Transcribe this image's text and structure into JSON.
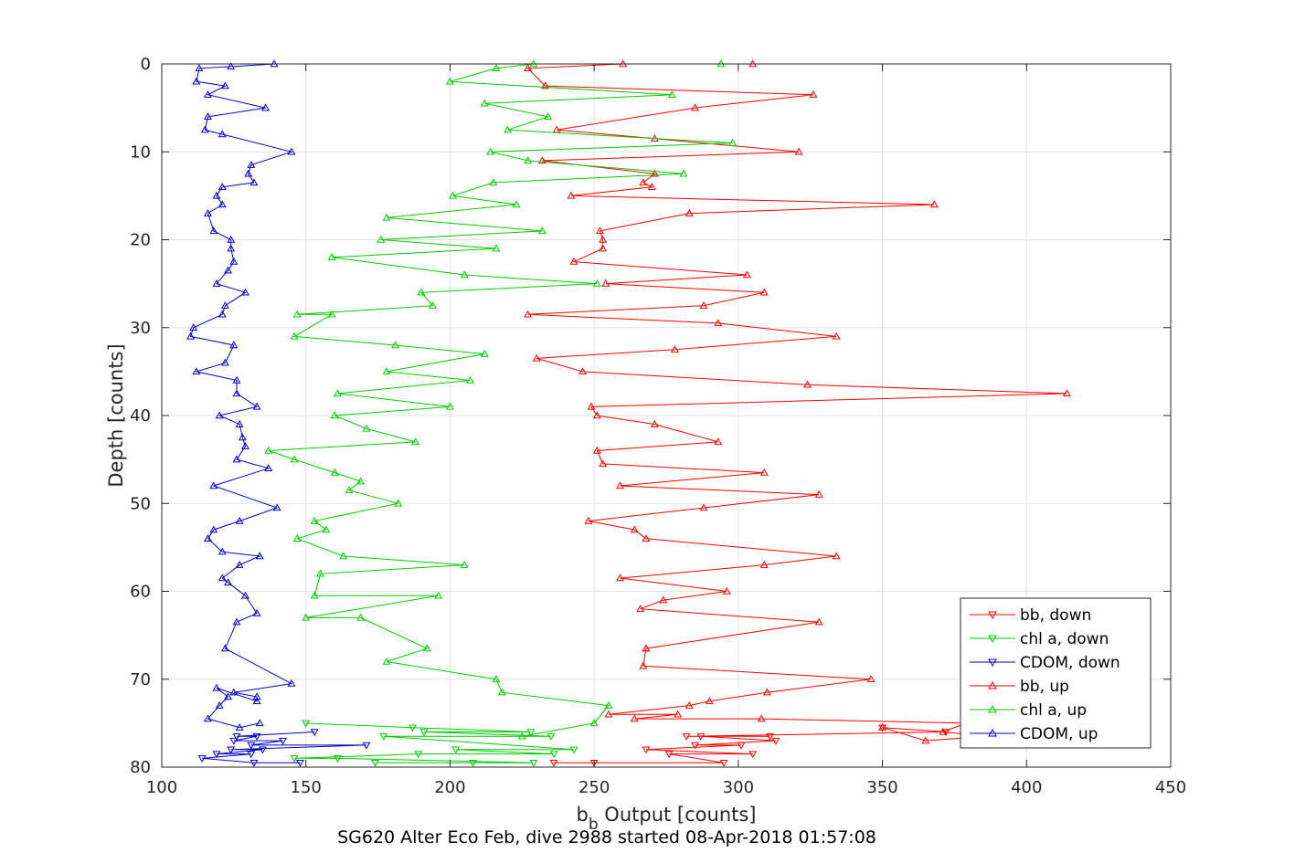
{
  "chart_data": {
    "type": "line",
    "title": "",
    "caption": "SG620 Alter Eco Feb, dive 2988 started 08-Apr-2018 01:57:08",
    "xlabel_main": "b",
    "xlabel_sub": "b",
    "xlabel_rest": " Output [counts]",
    "ylabel": "Depth [counts]",
    "xlim": [
      100,
      450
    ],
    "ylim": [
      0,
      80
    ],
    "y_reversed": true,
    "grid": true,
    "legend_position": "bottom-right",
    "xticks": [
      {
        "value": 100,
        "label": "100"
      },
      {
        "value": 150,
        "label": "150"
      },
      {
        "value": 200,
        "label": "200"
      },
      {
        "value": 250,
        "label": "250"
      },
      {
        "value": 300,
        "label": "300"
      },
      {
        "value": 350,
        "label": "350"
      },
      {
        "value": 400,
        "label": "400"
      },
      {
        "value": 450,
        "label": "450"
      }
    ],
    "yticks": [
      {
        "value": 0,
        "label": "0"
      },
      {
        "value": 10,
        "label": "10"
      },
      {
        "value": 20,
        "label": "20"
      },
      {
        "value": 30,
        "label": "30"
      },
      {
        "value": 40,
        "label": "40"
      },
      {
        "value": 50,
        "label": "50"
      },
      {
        "value": 60,
        "label": "60"
      },
      {
        "value": 70,
        "label": "70"
      },
      {
        "value": 80,
        "label": "80"
      }
    ],
    "series": [
      {
        "name": "bb, down",
        "color": "#ff0000",
        "marker": "triangle-down",
        "x": [
          236,
          250,
          295,
          276,
          305,
          268,
          301,
          285,
          313,
          287,
          311,
          282,
          372,
          350
        ],
        "y": [
          79.5,
          79.5,
          79.5,
          78.5,
          78.5,
          78,
          77.5,
          77.5,
          77,
          76.5,
          76.5,
          76.5,
          76,
          75.5
        ]
      },
      {
        "name": "chl a, down",
        "color": "#00cc00",
        "marker": "triangle-down",
        "x": [
          174,
          208,
          229,
          161,
          146,
          189,
          236,
          202,
          243,
          177,
          235,
          191,
          228,
          187,
          150
        ],
        "y": [
          79.5,
          79.5,
          79.5,
          79,
          79,
          78.5,
          78.5,
          78,
          78,
          76.5,
          76.5,
          76,
          76,
          75.5,
          75
        ]
      },
      {
        "name": "CDOM, down",
        "color": "#0000cc",
        "marker": "triangle-down",
        "x": [
          148,
          132,
          114,
          131,
          119,
          135,
          124,
          171,
          131,
          142,
          125,
          133,
          126,
          153
        ],
        "y": [
          79.5,
          79.5,
          79,
          78.5,
          78.5,
          78,
          78,
          77.5,
          77.5,
          77,
          77,
          76.5,
          76.5,
          76
        ]
      },
      {
        "name": "bb, up",
        "color": "#ff0000",
        "marker": "triangle-up",
        "x": [
          350,
          365,
          386,
          371,
          379,
          308,
          264,
          279,
          255,
          283,
          290,
          310,
          346,
          267,
          268,
          268,
          328,
          266,
          274,
          296,
          259,
          309,
          334,
          268,
          264,
          248,
          288,
          328,
          259,
          309,
          253,
          251,
          293,
          271,
          251,
          249,
          414,
          324,
          246,
          230,
          278,
          334,
          293,
          227,
          288,
          309,
          254,
          303,
          243,
          253,
          253,
          252,
          283,
          368,
          242,
          270,
          267,
          271,
          232,
          321,
          271,
          237,
          285,
          326,
          233,
          227,
          260,
          305
        ],
        "y": [
          75.5,
          77,
          76.5,
          76,
          75,
          74.5,
          74.5,
          74,
          74,
          73,
          72.5,
          71.5,
          70,
          68.5,
          66.5,
          66.5,
          63.5,
          62,
          61,
          60,
          58.5,
          57,
          56,
          54,
          53,
          52,
          50.5,
          49,
          48,
          46.5,
          45.5,
          44,
          43,
          41,
          40,
          39,
          37.5,
          36.5,
          35,
          33.5,
          32.5,
          31,
          29.5,
          28.5,
          27.5,
          26,
          25,
          24,
          22.5,
          21,
          20,
          19,
          17,
          16,
          15,
          14,
          13.5,
          12.5,
          11,
          10,
          8.5,
          7.5,
          5,
          3.5,
          2.5,
          0.5,
          0,
          0
        ]
      },
      {
        "name": "chl a, up",
        "color": "#00cc00",
        "marker": "triangle-up",
        "x": [
          225,
          250,
          255,
          218,
          216,
          178,
          192,
          169,
          150,
          196,
          153,
          155,
          205,
          163,
          147,
          157,
          153,
          182,
          165,
          169,
          160,
          146,
          137,
          188,
          171,
          160,
          200,
          161,
          207,
          178,
          212,
          181,
          146,
          159,
          147,
          194,
          190,
          251,
          205,
          159,
          216,
          176,
          232,
          178,
          223,
          201,
          215,
          281,
          227,
          214,
          298,
          220,
          234,
          212,
          277,
          200,
          216,
          229,
          294
        ],
        "y": [
          76.5,
          75,
          73,
          71.5,
          70,
          68,
          66.5,
          63,
          63,
          60.5,
          60.5,
          58,
          57,
          56,
          54,
          53,
          52,
          50,
          48.5,
          47.5,
          46.5,
          45,
          44,
          43,
          41.5,
          40,
          39,
          37.5,
          36,
          35,
          33,
          32,
          31,
          28.5,
          28.5,
          27.5,
          26,
          25,
          24,
          22,
          21,
          20,
          19,
          17.5,
          16,
          15,
          13.5,
          12.5,
          11,
          10,
          9,
          7.5,
          6,
          4.5,
          3.5,
          2,
          0.5,
          0,
          0
        ]
      },
      {
        "name": "CDOM, up",
        "color": "#0000cc",
        "marker": "triangle-up",
        "x": [
          134,
          127,
          116,
          120,
          123,
          119,
          133,
          133,
          125,
          145,
          122,
          126,
          133,
          129,
          123,
          121,
          127,
          134,
          121,
          116,
          118,
          127,
          140,
          118,
          137,
          126,
          129,
          128,
          127,
          120,
          133,
          126,
          126,
          112,
          122,
          125,
          110,
          111,
          121,
          122,
          129,
          119,
          123,
          125,
          124,
          124,
          118,
          116,
          121,
          119,
          121,
          132,
          130,
          131,
          145,
          121,
          115,
          116,
          136,
          116,
          122,
          112,
          113,
          124,
          139
        ],
        "y": [
          75,
          75.5,
          74.5,
          73,
          72,
          71,
          72.5,
          72,
          71.5,
          70.5,
          66.5,
          63.5,
          62.5,
          60.5,
          59,
          58.5,
          57,
          56,
          55.5,
          54,
          53,
          52,
          50.5,
          48,
          46,
          45,
          43.5,
          42.5,
          41,
          40,
          39,
          37.5,
          36,
          35,
          34,
          32,
          31,
          30,
          28.5,
          27.5,
          26,
          25,
          23.5,
          22.5,
          21,
          20,
          19,
          17,
          16,
          15,
          14,
          13.5,
          12.5,
          11.5,
          10,
          8,
          7.5,
          6,
          5,
          3.5,
          2.5,
          2,
          0.5,
          0.3,
          0
        ]
      }
    ]
  }
}
